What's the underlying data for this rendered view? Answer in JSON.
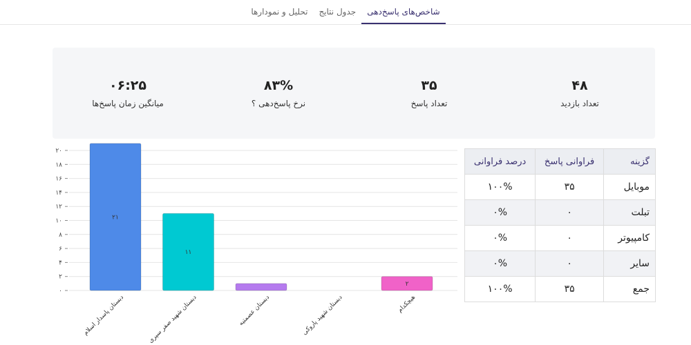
{
  "tabs": [
    {
      "label": "شاخص‌های پاسخ‌دهی",
      "active": true
    },
    {
      "label": "جدول نتایج",
      "active": false
    },
    {
      "label": "تحلیل و نمودارها",
      "active": false
    }
  ],
  "stats": [
    {
      "value": "۴۸",
      "label": "تعداد بازدید"
    },
    {
      "value": "۳۵",
      "label": "تعداد پاسخ"
    },
    {
      "value": "۸۳%",
      "label": "نرخ پاسخ‌دهی  ؟"
    },
    {
      "value": "۰۶:۲۵",
      "label": "میانگین زمان پاسخ‌ها"
    }
  ],
  "table": {
    "headers": [
      "گزینه",
      "فراوانی پاسخ",
      "درصد فراوانی"
    ],
    "rows": [
      [
        "موبایل",
        "۳۵",
        "۱۰۰%"
      ],
      [
        "تبلت",
        "۰",
        "۰%"
      ],
      [
        "کامپیوتر",
        "۰",
        "۰%"
      ],
      [
        "سایر",
        "۰",
        "۰%"
      ],
      [
        "جمع",
        "۳۵",
        "۱۰۰%"
      ]
    ]
  },
  "chart_data": {
    "type": "bar",
    "categories": [
      "دبستان پاسدار اسلام",
      "دبستان شهید صفر سپری",
      "دبستان عصمتیه",
      "دبستان شهید پاروکی",
      "هیچکدام"
    ],
    "values": [
      21,
      11,
      1,
      0,
      2
    ],
    "data_labels": [
      "۲۱",
      "۱۱",
      "",
      "",
      "۲"
    ],
    "colors": [
      "#4e8ae8",
      "#00c9d2",
      "#b57bee",
      "#cccccc",
      "#f062c8"
    ],
    "ylim": [
      0,
      20
    ],
    "yticks": [
      0,
      2,
      4,
      6,
      8,
      10,
      12,
      14,
      16,
      18,
      20
    ],
    "ytick_labels": [
      "۰",
      "۲",
      "۴",
      "۶",
      "۸",
      "۱۰",
      "۱۲",
      "۱۴",
      "۱۶",
      "۱۸",
      "۲۰"
    ],
    "grid": true
  }
}
